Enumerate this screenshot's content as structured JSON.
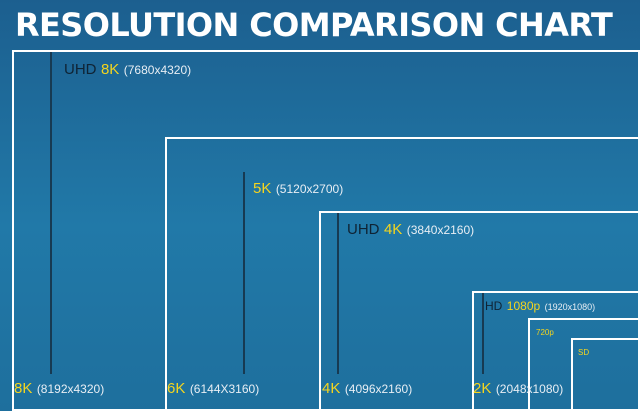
{
  "title": "RESOLUTION COMPARISON CHART",
  "colors": {
    "background": "#2179a8",
    "title": "#ffffff",
    "border": "#ffffff",
    "highlight": "#f4d51e",
    "prefix": "#0f2334",
    "dimension": "#e8eef4"
  },
  "resolutions": [
    {
      "id": "8k-dci",
      "name": "8K",
      "dims": "(8192x4320)"
    },
    {
      "id": "6k",
      "name": "6K",
      "dims": "(6144X3160)"
    },
    {
      "id": "4k-dci",
      "name": "4K",
      "dims": "(4096x2160)"
    },
    {
      "id": "2k",
      "name": "2K",
      "dims": "(2048x1080)"
    },
    {
      "id": "uhd-8k",
      "prefix": "UHD",
      "name": "8K",
      "dims": "(7680x4320)"
    },
    {
      "id": "5k",
      "name": "5K",
      "dims": "(5120x2700)"
    },
    {
      "id": "uhd-4k",
      "prefix": "UHD",
      "name": "4K",
      "dims": "(3840x2160)"
    },
    {
      "id": "hd-1080p",
      "prefix": "HD",
      "name": "1080p",
      "dims": "(1920x1080)"
    },
    {
      "id": "720p",
      "name": "720p"
    },
    {
      "id": "sd",
      "name": "SD"
    }
  ]
}
